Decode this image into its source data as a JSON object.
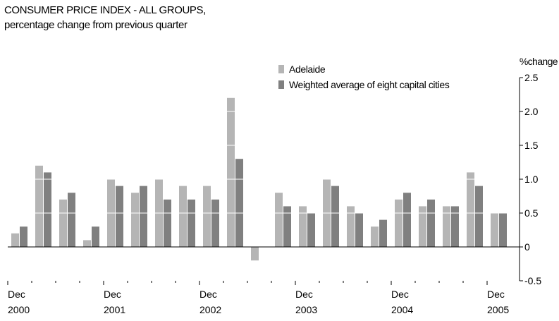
{
  "chart_data": {
    "type": "bar",
    "title": "CONSUMER PRICE INDEX - ALL GROUPS,",
    "subtitle": "percentage change from previous quarter",
    "y_axis_label": "%change",
    "categories": [
      "Dec 2000",
      null,
      null,
      null,
      "Dec 2001",
      null,
      null,
      null,
      "Dec 2002",
      null,
      null,
      null,
      "Dec 2003",
      null,
      null,
      null,
      "Dec 2004",
      null,
      null,
      null,
      "Dec 2005"
    ],
    "series": [
      {
        "name": "Adelaide",
        "color": "#b5b5b5",
        "values": [
          0.2,
          1.2,
          0.7,
          0.1,
          1.0,
          0.8,
          1.0,
          0.9,
          0.9,
          2.2,
          -0.2,
          0.8,
          0.6,
          1.0,
          0.6,
          0.3,
          0.7,
          0.6,
          0.6,
          1.1,
          0.5
        ]
      },
      {
        "name": "Weighted average of eight capital cities",
        "color": "#808080",
        "values": [
          0.3,
          1.1,
          0.8,
          0.3,
          0.9,
          0.9,
          0.7,
          0.7,
          0.7,
          1.3,
          0.0,
          0.6,
          0.5,
          0.9,
          0.5,
          0.4,
          0.8,
          0.7,
          0.6,
          0.9,
          0.5
        ]
      }
    ],
    "ylim": [
      -0.5,
      2.5
    ],
    "yticks": [
      -0.5,
      0,
      0.5,
      {
        "value": 1,
        "label": "1.0"
      },
      1.5,
      {
        "value": 2,
        "label": "2.0"
      },
      2.5
    ],
    "grid": true,
    "grid_color": "#ffffff",
    "legend_position": "top"
  }
}
